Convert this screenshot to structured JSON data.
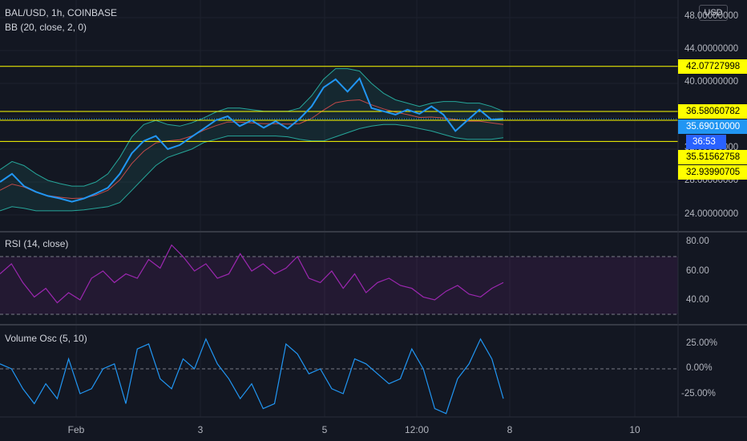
{
  "header": {
    "symbol": "BAL/USD, 1h, COINBASE",
    "bb_legend": "BB (20, close, 2, 0)",
    "currency_button": "USD"
  },
  "price_axis": {
    "ticks": [
      "48.00000000",
      "44.00000000",
      "40.00000000",
      "32.00000000",
      "28.00000000",
      "24.00000000"
    ]
  },
  "price_tags": {
    "resistance_top": "42.07727998",
    "resistance_mid": "36.58060782",
    "current_price": "35.69010000",
    "countdown": "36:53",
    "support_a": "35.51562758",
    "support_b": "32.93990705"
  },
  "rsi_pane": {
    "title": "RSI (14, close)",
    "ticks": [
      "80.00",
      "60.00",
      "40.00"
    ]
  },
  "volume_pane": {
    "title": "Volume Osc (5, 10)",
    "ticks": [
      "25.00%",
      "0.00%",
      "-25.00%"
    ]
  },
  "time_axis": {
    "labels": [
      "Feb",
      "3",
      "5",
      "12:00",
      "8",
      "10"
    ]
  },
  "colors": {
    "background": "#131722",
    "price_line": "#2196f3",
    "bb_band": "#26a69a",
    "bb_basis": "#ef5350",
    "rsi_line": "#9c27b0",
    "level_line": "#ffff00"
  },
  "chart_data": [
    {
      "type": "line",
      "series": [
        {
          "name": "BAL/USD",
          "values": [
            28.0,
            29.0,
            27.5,
            26.8,
            26.3,
            26.0,
            25.6,
            26.0,
            26.6,
            27.3,
            29.0,
            31.5,
            33.0,
            33.6,
            32.0,
            32.5,
            33.5,
            34.5,
            35.5,
            36.0,
            34.8,
            35.5,
            34.6,
            35.4,
            34.5,
            35.7,
            37.2,
            39.5,
            40.5,
            39.0,
            40.6,
            37.0,
            36.6,
            36.2,
            36.8,
            36.3,
            37.2,
            36.2,
            34.2,
            35.5,
            36.8,
            35.6,
            35.7
          ]
        },
        {
          "name": "BB upper",
          "values": [
            29.5,
            30.5,
            30.0,
            29.0,
            28.2,
            27.8,
            27.5,
            27.5,
            28.0,
            29.0,
            31.0,
            33.5,
            35.0,
            35.5,
            35.0,
            34.8,
            35.2,
            35.8,
            36.5,
            37.0,
            37.0,
            36.8,
            36.6,
            36.6,
            36.6,
            37.0,
            38.5,
            40.5,
            41.8,
            41.8,
            41.5,
            40.0,
            38.8,
            38.0,
            37.6,
            37.2,
            37.6,
            37.8,
            37.8,
            37.6,
            37.6,
            37.2,
            36.6
          ]
        },
        {
          "name": "BB lower",
          "values": [
            24.5,
            25.0,
            24.8,
            24.5,
            24.5,
            24.5,
            24.5,
            24.6,
            24.8,
            25.0,
            25.5,
            27.0,
            28.5,
            30.0,
            31.0,
            31.5,
            32.0,
            32.8,
            33.2,
            33.6,
            33.6,
            33.6,
            33.6,
            33.6,
            33.5,
            33.2,
            33.0,
            33.0,
            33.5,
            34.0,
            34.5,
            34.8,
            35.0,
            35.0,
            34.8,
            34.5,
            34.2,
            33.8,
            33.4,
            33.2,
            33.2,
            33.2,
            33.4
          ]
        }
      ],
      "levels": [
        42.07727998,
        36.58060782,
        35.51562758,
        32.93990705
      ]
    },
    {
      "type": "line",
      "series": [
        {
          "name": "RSI",
          "values": [
            58,
            65,
            52,
            42,
            48,
            38,
            45,
            40,
            55,
            60,
            52,
            58,
            55,
            68,
            62,
            78,
            70,
            60,
            65,
            55,
            58,
            72,
            60,
            65,
            58,
            62,
            70,
            55,
            52,
            60,
            48,
            58,
            45,
            52,
            55,
            50,
            48,
            42,
            40,
            46,
            50,
            44,
            42,
            48,
            52
          ]
        }
      ],
      "ylim": [
        20,
        90
      ],
      "guide_levels": [
        70,
        30
      ]
    },
    {
      "type": "line",
      "series": [
        {
          "name": "Volume Osc",
          "values": [
            5,
            0,
            -20,
            -35,
            -15,
            -30,
            10,
            -25,
            -20,
            0,
            5,
            -35,
            20,
            25,
            -10,
            -20,
            10,
            0,
            30,
            5,
            -10,
            -30,
            -15,
            -40,
            -35,
            25,
            15,
            -5,
            0,
            -20,
            -25,
            10,
            5,
            -5,
            -15,
            -10,
            20,
            0,
            -40,
            -45,
            -10,
            5,
            30,
            10,
            -30
          ]
        }
      ],
      "guide_levels": [
        0
      ]
    }
  ]
}
